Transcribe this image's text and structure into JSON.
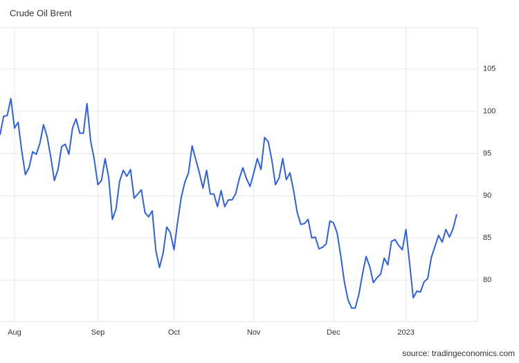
{
  "chart_data": {
    "type": "line",
    "title": "Crude Oil Brent",
    "source": "source: tradingeconomics.com",
    "categories": [
      null,
      null,
      null,
      null,
      "Aug",
      null,
      null,
      null,
      null,
      null,
      null,
      null,
      null,
      null,
      null,
      null,
      null,
      null,
      null,
      null,
      null,
      null,
      null,
      null,
      null,
      null,
      null,
      "Sep",
      null,
      null,
      null,
      null,
      null,
      null,
      null,
      null,
      null,
      null,
      null,
      null,
      null,
      null,
      null,
      null,
      null,
      null,
      null,
      null,
      "Oct",
      null,
      null,
      null,
      null,
      null,
      null,
      null,
      null,
      null,
      null,
      null,
      null,
      null,
      null,
      null,
      null,
      null,
      null,
      null,
      null,
      null,
      "Nov",
      null,
      null,
      null,
      null,
      null,
      null,
      null,
      null,
      null,
      null,
      null,
      null,
      null,
      null,
      null,
      null,
      null,
      null,
      null,
      null,
      null,
      "Dec",
      null,
      null,
      null,
      null,
      null,
      null,
      null,
      null,
      null,
      null,
      null,
      null,
      null,
      null,
      null,
      null,
      null,
      null,
      null,
      "2023",
      null,
      null,
      null,
      null,
      null,
      null,
      null,
      null,
      null,
      null,
      null,
      null,
      null,
      null
    ],
    "values": [
      97.2,
      99.4,
      99.5,
      101.5,
      98.0,
      98.7,
      95.3,
      92.5,
      93.3,
      95.2,
      94.9,
      96.2,
      98.4,
      97.0,
      94.6,
      91.8,
      93.1,
      95.8,
      96.1,
      94.9,
      98.0,
      99.1,
      97.4,
      97.4,
      100.9,
      96.5,
      94.3,
      91.3,
      91.8,
      94.4,
      92.1,
      87.2,
      88.4,
      91.7,
      93.0,
      92.3,
      93.1,
      89.7,
      90.2,
      90.7,
      88.0,
      87.5,
      88.2,
      83.5,
      81.5,
      83.2,
      86.3,
      85.6,
      83.6,
      86.9,
      89.8,
      91.6,
      92.7,
      95.9,
      94.3,
      92.7,
      90.9,
      93.0,
      90.2,
      90.2,
      88.7,
      90.6,
      88.7,
      89.5,
      89.5,
      90.2,
      92.0,
      93.3,
      92.0,
      91.1,
      92.7,
      94.4,
      93.1,
      96.9,
      96.4,
      94.2,
      91.3,
      92.1,
      94.4,
      91.9,
      92.7,
      90.6,
      88.0,
      86.6,
      86.7,
      87.2,
      85.0,
      85.1,
      83.7,
      83.9,
      84.3,
      87.0,
      86.8,
      85.6,
      82.9,
      79.8,
      77.7,
      76.7,
      76.7,
      78.3,
      80.7,
      82.8,
      81.6,
      79.7,
      80.3,
      80.7,
      82.6,
      81.8,
      84.6,
      84.8,
      84.1,
      83.6,
      86.0,
      82.0,
      77.9,
      78.7,
      78.6,
      79.8,
      80.2,
      82.7,
      84.0,
      85.3,
      84.5,
      86.0,
      85.1,
      86.1,
      87.8
    ],
    "color": "#2c5fe3",
    "ylim": [
      75.1,
      109.9
    ],
    "yticks": [
      80,
      85,
      90,
      95,
      100,
      105
    ],
    "grid": true
  }
}
